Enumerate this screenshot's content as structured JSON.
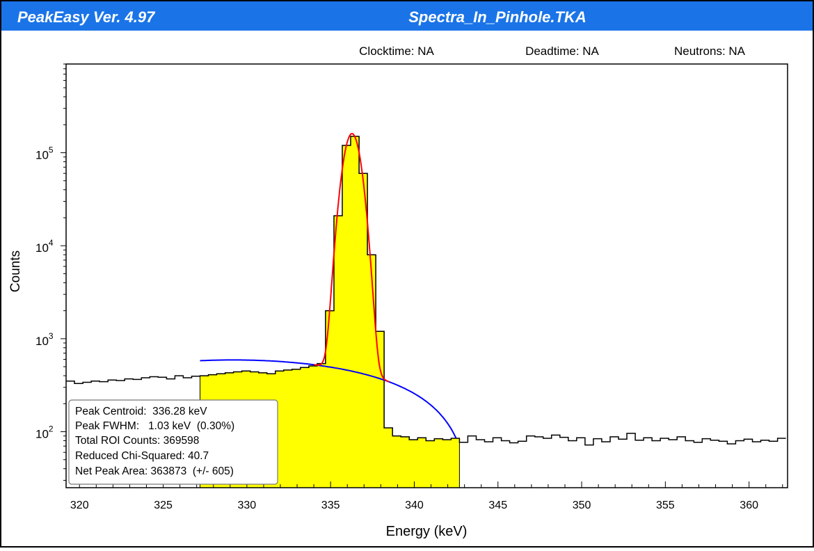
{
  "window": {
    "app_title": "PeakEasy Ver. 4.97",
    "file_title": "Spectra_In_Pinhole.TKA",
    "title_bar_color": "#1a74e8",
    "title_text_color": "#ffffff"
  },
  "status": {
    "clocktime": "Clocktime: NA",
    "deadtime": "Deadtime: NA",
    "neutrons": "Neutrons: NA"
  },
  "chart_data": {
    "type": "histogram",
    "xlabel": "Energy (keV)",
    "ylabel": "Counts",
    "y_scale": "log",
    "xlim": [
      319.2,
      362.3
    ],
    "ylim": [
      25,
      900000
    ],
    "x_ticks": [
      320,
      325,
      330,
      335,
      340,
      345,
      350,
      355,
      360
    ],
    "y_ticks": [
      {
        "value": 100,
        "base": "10",
        "exp": "2"
      },
      {
        "value": 1000,
        "base": "10",
        "exp": "3"
      },
      {
        "value": 10000,
        "base": "10",
        "exp": "4"
      },
      {
        "value": 100000,
        "base": "10",
        "exp": "5"
      }
    ],
    "spectrum": {
      "bin_width": 0.5,
      "bin_starts": [
        319.2,
        319.7,
        320.2,
        320.7,
        321.2,
        321.7,
        322.2,
        322.7,
        323.2,
        323.7,
        324.2,
        324.7,
        325.2,
        325.7,
        326.2,
        326.7,
        327.2,
        327.7,
        328.2,
        328.7,
        329.2,
        329.7,
        330.2,
        330.7,
        331.2,
        331.7,
        332.2,
        332.7,
        333.2,
        333.7,
        334.2,
        334.7,
        335.2,
        335.7,
        336.2,
        336.7,
        337.2,
        337.7,
        338.2,
        338.7,
        339.2,
        339.7,
        340.2,
        340.7,
        341.2,
        341.7,
        342.2,
        342.7,
        343.2,
        343.7,
        344.2,
        344.7,
        345.2,
        345.7,
        346.2,
        346.7,
        347.2,
        347.7,
        348.2,
        348.7,
        349.2,
        349.7,
        350.2,
        350.7,
        351.2,
        351.7,
        352.2,
        352.7,
        353.2,
        353.7,
        354.2,
        354.7,
        355.2,
        355.7,
        356.2,
        356.7,
        357.2,
        357.7,
        358.2,
        358.7,
        359.2,
        359.7,
        360.2,
        360.7,
        361.2,
        361.7
      ],
      "counts": [
        350,
        330,
        340,
        350,
        345,
        360,
        355,
        370,
        365,
        380,
        390,
        385,
        370,
        400,
        380,
        395,
        400,
        410,
        420,
        430,
        440,
        450,
        440,
        430,
        420,
        450,
        460,
        470,
        490,
        510,
        540,
        2000,
        21000,
        120000,
        150000,
        60000,
        8000,
        1200,
        110,
        90,
        88,
        82,
        86,
        80,
        84,
        82,
        85,
        77,
        90,
        82,
        78,
        86,
        80,
        76,
        79,
        90,
        88,
        85,
        92,
        87,
        80,
        86,
        72,
        84,
        78,
        88,
        83,
        96,
        81,
        86,
        80,
        85,
        82,
        88,
        80,
        77,
        84,
        81,
        79,
        74,
        80,
        83,
        78,
        81,
        79,
        85
      ]
    },
    "roi": {
      "start": 327.2,
      "end": 342.7,
      "fill_color": "#ffff00"
    },
    "fit": {
      "gaussian": {
        "color": "#ff0000",
        "centroid": 336.28,
        "fwhm": 1.03,
        "peak_height": 160000,
        "x_range": [
          334.0,
          338.5
        ]
      },
      "background": {
        "color": "#0000ff",
        "x_range": [
          327.2,
          342.5
        ],
        "start_value": 580,
        "end_value": 85
      }
    },
    "annotations": [
      "Peak Centroid:  336.28 keV",
      "Peak FWHM:   1.03 keV  (0.30%)",
      "Total ROI Counts: 369598",
      "Reduced Chi-Squared: 40.7",
      "Net Peak Area: 363873  (+/- 605)"
    ],
    "grid": false
  }
}
